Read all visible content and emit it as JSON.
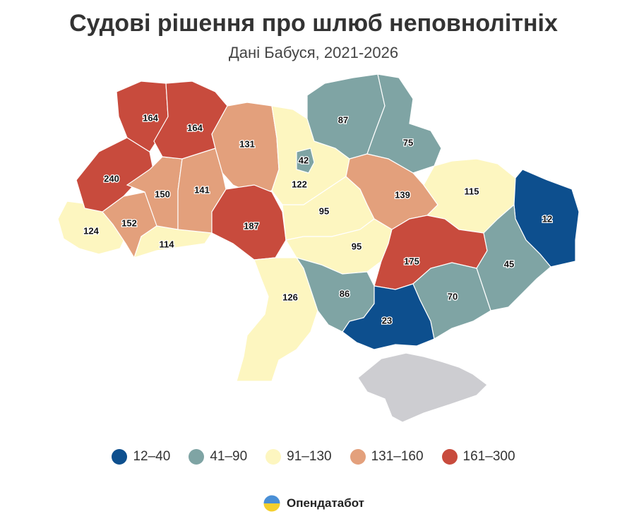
{
  "header": {
    "title": "Судові рішення про шлюб неповнолітніх",
    "subtitle": "Дані Бабуся, 2021-2026"
  },
  "colors": {
    "bin1": "#0d4f8e",
    "bin2": "#7fa4a4",
    "bin3": "#fdf6c0",
    "bin4": "#e3a07c",
    "bin5": "#c84b3d",
    "nodata": "#cdcdd1"
  },
  "legend": [
    {
      "label": "12–40",
      "color_key": "bin1"
    },
    {
      "label": "41–90",
      "color_key": "bin2"
    },
    {
      "label": "91–130",
      "color_key": "bin3"
    },
    {
      "label": "131–160",
      "color_key": "bin4"
    },
    {
      "label": "161–300",
      "color_key": "bin5"
    }
  ],
  "regions": [
    {
      "id": "volyn",
      "value": 164
    },
    {
      "id": "rivne",
      "value": 164
    },
    {
      "id": "zhytomyr",
      "value": 131
    },
    {
      "id": "kyiv",
      "value": 42
    },
    {
      "id": "chernihiv",
      "value": 87
    },
    {
      "id": "sumy",
      "value": 75
    },
    {
      "id": "lviv",
      "value": 240
    },
    {
      "id": "ternopil",
      "value": 150
    },
    {
      "id": "khmelnytskyi",
      "value": 141
    },
    {
      "id": "kyiv-oblast",
      "value": 122
    },
    {
      "id": "poltava",
      "value": 139
    },
    {
      "id": "kharkiv",
      "value": 115
    },
    {
      "id": "luhansk",
      "value": 12
    },
    {
      "id": "zakarpattia",
      "value": 124
    },
    {
      "id": "ivano-frankivsk",
      "value": 152
    },
    {
      "id": "chernivtsi",
      "value": 114
    },
    {
      "id": "vinnytsia",
      "value": 187
    },
    {
      "id": "cherkasy",
      "value": 95
    },
    {
      "id": "kirovohrad",
      "value": 95
    },
    {
      "id": "dnipropetrovsk",
      "value": 175
    },
    {
      "id": "donetsk",
      "value": 45
    },
    {
      "id": "odesa",
      "value": 126
    },
    {
      "id": "mykolaiv",
      "value": 86
    },
    {
      "id": "kherson",
      "value": 23
    },
    {
      "id": "zaporizhzhia",
      "value": 70
    },
    {
      "id": "crimea",
      "value": null
    }
  ],
  "brand": {
    "name": "Опендатабот"
  }
}
